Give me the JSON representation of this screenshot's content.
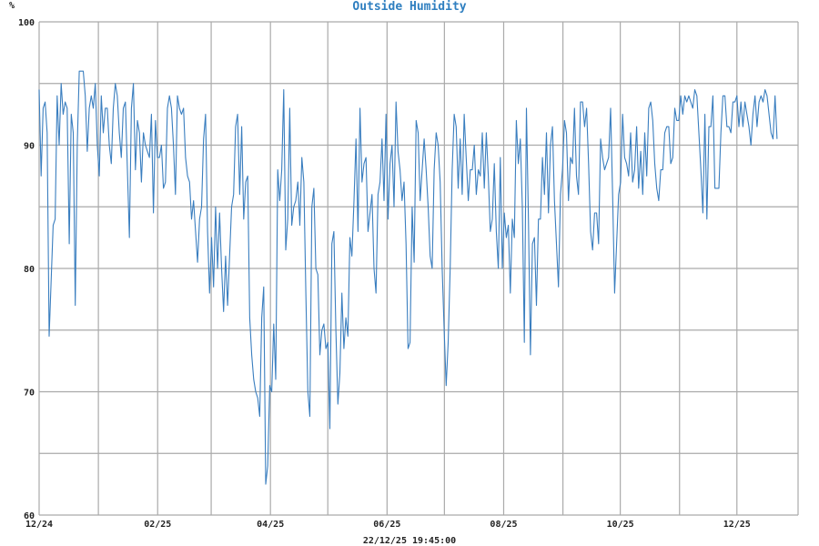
{
  "chart_data": {
    "type": "line",
    "title": "Outside Humidity",
    "ylabel": "%",
    "xlabel": "22/12/25 19:45:00",
    "ylim": [
      60,
      100
    ],
    "y_ticks": [
      60,
      70,
      80,
      90,
      100
    ],
    "y_grid_step": 5,
    "x_unit": "days since 2024-12-01",
    "xlim": [
      0,
      397
    ],
    "x_last_day": 386,
    "x_ticks": [
      {
        "day": 0,
        "label": "12/24"
      },
      {
        "day": 62,
        "label": "02/25"
      },
      {
        "day": 121,
        "label": "04/25"
      },
      {
        "day": 182,
        "label": "06/25"
      },
      {
        "day": 243,
        "label": "08/25"
      },
      {
        "day": 304,
        "label": "10/25"
      },
      {
        "day": 365,
        "label": "12/25"
      }
    ],
    "x_grid_days": [
      0,
      31,
      62,
      90,
      121,
      151,
      182,
      212,
      243,
      274,
      304,
      335,
      365,
      397
    ],
    "grid": true,
    "colors": {
      "line": "#3a7ebf",
      "title": "#2f7fc0",
      "grid": "#aaaaaa"
    },
    "series": [
      {
        "name": "Outside Humidity",
        "values": [
          94.5,
          87.5,
          93,
          93.5,
          91,
          74.5,
          79,
          83.5,
          84,
          94,
          90,
          95,
          92.5,
          93.5,
          93,
          82,
          92.5,
          91,
          77,
          90,
          96,
          96,
          96,
          94,
          89.5,
          93,
          94,
          93,
          95,
          90,
          87.5,
          94,
          91,
          93,
          93,
          90,
          88.5,
          93,
          95,
          94,
          91,
          89,
          93,
          93.5,
          88,
          82.5,
          93,
          95,
          88,
          92,
          91,
          87,
          91,
          90,
          89.5,
          89,
          92.5,
          84.5,
          92,
          89,
          89,
          90,
          86.5,
          87,
          93,
          94,
          93,
          90,
          86,
          94,
          93,
          92.5,
          93,
          89,
          87.5,
          87,
          84,
          85.5,
          83,
          80.5,
          84,
          85,
          90.5,
          92.5,
          83,
          78,
          82.5,
          78.5,
          85,
          80,
          84.5,
          80,
          76.5,
          81,
          77,
          81,
          85,
          86,
          91.5,
          92.5,
          86,
          91.5,
          84,
          87,
          87.5,
          76,
          73,
          71,
          70,
          69.5,
          68,
          76,
          78.5,
          62.5,
          64,
          70.5,
          70,
          75.5,
          71,
          88,
          85.5,
          88,
          94.5,
          81.5,
          84,
          93,
          83.5,
          85,
          85.5,
          87,
          83.5,
          89,
          87,
          78,
          70,
          68,
          85,
          86.5,
          80,
          79.5,
          73,
          75,
          75.5,
          73.5,
          74,
          67,
          82,
          83,
          75,
          69,
          71.5,
          78,
          73.5,
          76,
          74.5,
          82.5,
          81,
          85.5,
          90.5,
          83,
          93,
          87,
          88.5,
          89,
          83,
          84.5,
          86,
          80,
          78,
          86,
          87,
          90.5,
          85.5,
          92.5,
          84,
          88.5,
          90,
          85,
          93.5,
          89.5,
          88,
          85.5,
          87,
          82,
          73.5,
          74,
          85,
          80.5,
          92,
          91,
          85.5,
          88,
          90.5,
          88,
          85,
          81,
          80,
          88,
          91,
          90,
          87,
          80,
          75,
          70.5,
          74,
          80,
          88,
          92.5,
          91.5,
          86.5,
          90.5,
          86,
          92.5,
          89,
          85.5,
          88,
          88,
          90,
          86,
          88,
          87.5,
          91,
          86.5,
          91,
          87.5,
          83,
          84,
          88.5,
          83,
          80,
          89,
          80,
          84.5,
          82.5,
          83.5,
          78,
          84,
          82.5,
          92,
          88.5,
          90.5,
          85,
          74,
          93,
          84,
          73,
          82,
          82.5,
          77,
          84,
          84,
          89,
          86,
          91,
          84.5,
          90,
          91.5,
          85.5,
          82,
          78.5,
          86,
          88,
          92,
          91,
          85.5,
          89,
          88.5,
          93,
          87.5,
          86,
          93.5,
          93.5,
          91.5,
          93,
          88.5,
          83,
          81.5,
          84.5,
          84.5,
          82,
          90.5,
          89,
          88,
          88.5,
          89,
          93,
          86,
          78,
          82,
          86,
          87,
          92.5,
          89,
          88.5,
          87.5,
          91,
          87,
          88,
          91.5,
          86.5,
          89.5,
          86,
          91,
          87.5,
          93,
          93.5,
          92,
          88.5,
          86.5,
          85.5,
          88,
          88,
          91,
          91.5,
          91.5,
          88.5,
          89,
          93,
          92,
          92,
          94,
          92.5,
          94,
          93.5,
          94,
          93.5,
          93,
          94.5,
          94,
          91,
          88,
          84.5,
          92.5,
          84,
          91.5,
          91.5,
          94,
          86.5,
          86.5,
          86.5,
          91,
          94,
          94,
          91.5,
          91.5,
          91,
          93.5,
          93.5,
          94,
          91.5,
          93.5,
          91.5,
          93.5,
          92.5,
          91.5,
          90,
          92.5,
          94,
          91.5,
          93.5,
          94,
          93.5,
          94.5,
          94,
          92.5,
          91,
          90.5,
          94,
          90.5
        ]
      }
    ]
  }
}
